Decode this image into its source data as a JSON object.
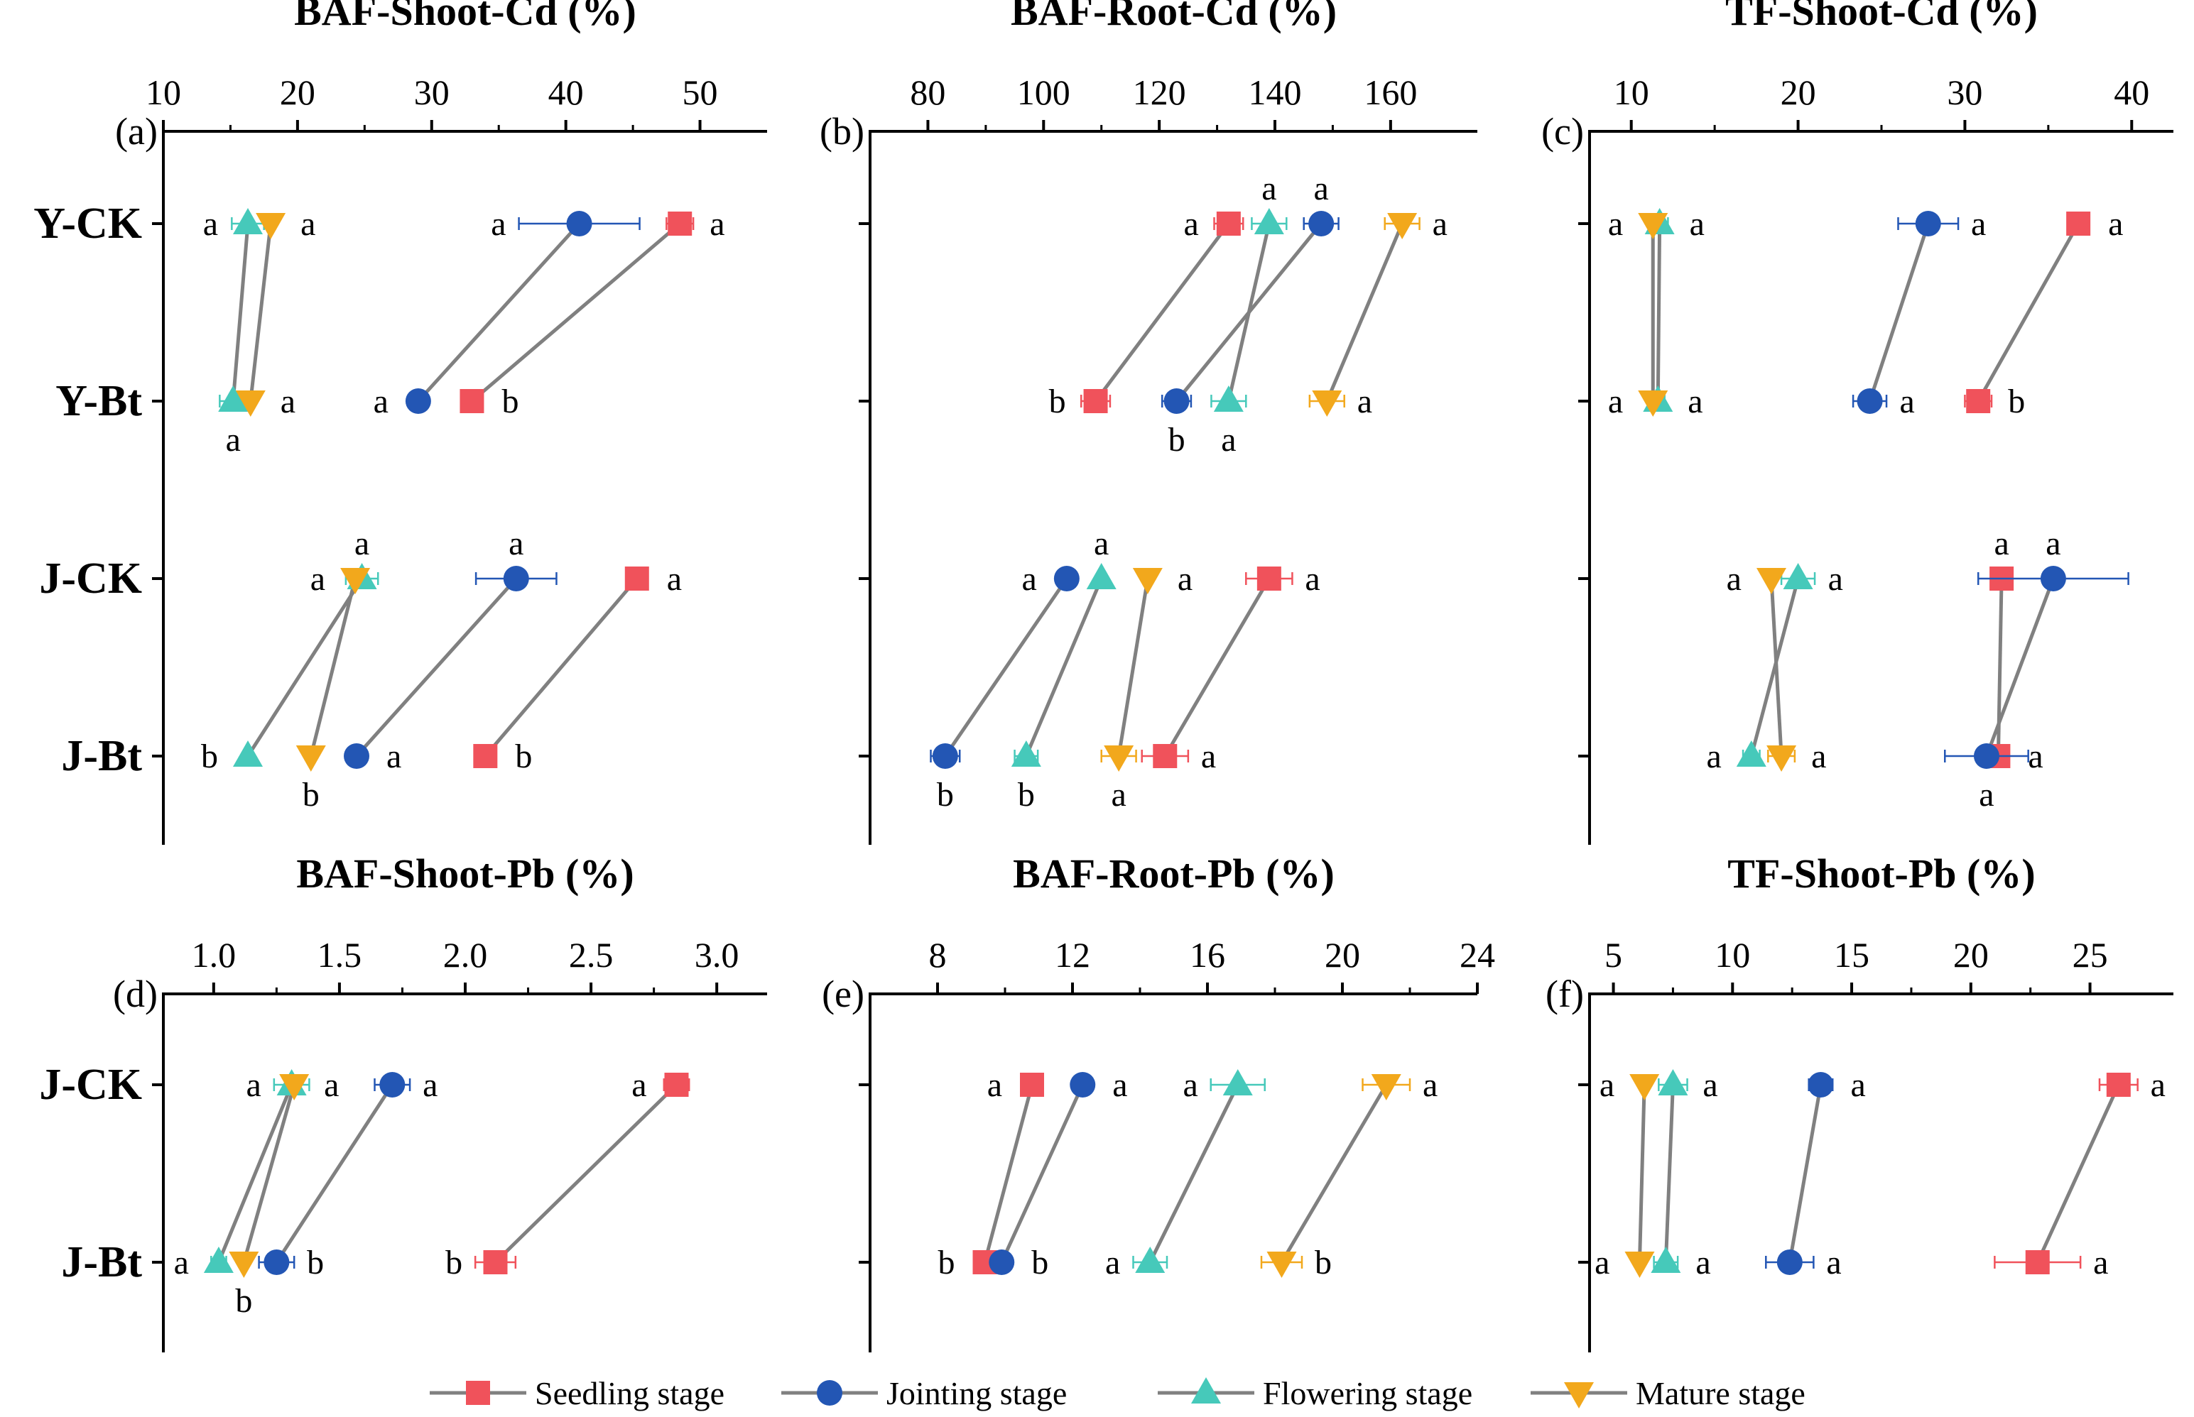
{
  "chart_data": [
    {
      "id": "a",
      "type": "scatter",
      "title": "BAF-Shoot-Cd (%)",
      "panel_label": "(a)",
      "rows": [
        "Y-CK",
        "Y-Bt",
        "J-CK",
        "J-Bt"
      ],
      "xlim": [
        10,
        55
      ],
      "xticks": [
        10,
        20,
        30,
        40,
        50
      ],
      "series": [
        {
          "name": "Seedling stage",
          "values": [
            48.5,
            33.0,
            45.3,
            34.0
          ],
          "errors": [
            1.0,
            0,
            0,
            0
          ],
          "letters": [
            {
              "text": "a",
              "side": "right"
            },
            {
              "text": "b",
              "side": "right"
            },
            {
              "text": "a",
              "side": "right"
            },
            {
              "text": "b",
              "side": "right"
            }
          ]
        },
        {
          "name": "Jointing stage",
          "values": [
            41.0,
            29.0,
            36.3,
            24.4
          ],
          "errors": [
            4.5,
            0,
            3.0,
            0.5
          ],
          "letters": [
            {
              "text": "a",
              "side": "left"
            },
            {
              "text": "a",
              "side": "left"
            },
            {
              "text": "a",
              "side": "above"
            },
            {
              "text": "a",
              "side": "right"
            }
          ]
        },
        {
          "name": "Flowering stage",
          "values": [
            16.3,
            15.2,
            24.8,
            16.3
          ],
          "errors": [
            1.2,
            1.0,
            1.2,
            0
          ],
          "letters": [
            {
              "text": "a",
              "side": "left"
            },
            {
              "text": "a",
              "side": "below"
            },
            {
              "text": "a",
              "side": "above"
            },
            {
              "text": "b",
              "side": "left"
            }
          ]
        },
        {
          "name": "Mature stage",
          "values": [
            18.0,
            16.5,
            24.3,
            21.0
          ],
          "errors": [
            0,
            0,
            0,
            0
          ],
          "letters": [
            {
              "text": "a",
              "side": "right"
            },
            {
              "text": "a",
              "side": "right"
            },
            {
              "text": "a",
              "side": "left"
            },
            {
              "text": "b",
              "side": "below"
            }
          ]
        }
      ]
    },
    {
      "id": "b",
      "type": "scatter",
      "title": "BAF-Root-Cd (%)",
      "panel_label": "(b)",
      "rows": [
        "Y-CK",
        "Y-Bt",
        "J-CK",
        "J-Bt"
      ],
      "xlim": [
        70,
        175
      ],
      "xticks": [
        80,
        100,
        120,
        140,
        160
      ],
      "series": [
        {
          "name": "Seedling stage",
          "values": [
            132,
            109,
            139,
            121
          ],
          "errors": [
            2.5,
            2.5,
            4.0,
            4.0
          ],
          "letters": [
            {
              "text": "a",
              "side": "left"
            },
            {
              "text": "b",
              "side": "left"
            },
            {
              "text": "a",
              "side": "right"
            },
            {
              "text": "a",
              "side": "right"
            }
          ]
        },
        {
          "name": "Jointing stage",
          "values": [
            148,
            123,
            104,
            83
          ],
          "errors": [
            3.0,
            2.5,
            0,
            2.5
          ],
          "letters": [
            {
              "text": "a",
              "side": "above"
            },
            {
              "text": "b",
              "side": "below"
            },
            {
              "text": "a",
              "side": "left"
            },
            {
              "text": "b",
              "side": "below"
            }
          ]
        },
        {
          "name": "Flowering stage",
          "values": [
            139,
            132,
            110,
            97
          ],
          "errors": [
            3.0,
            3.0,
            0,
            2.0
          ],
          "letters": [
            {
              "text": "a",
              "side": "above"
            },
            {
              "text": "a",
              "side": "below"
            },
            {
              "text": "a",
              "side": "above"
            },
            {
              "text": "b",
              "side": "below"
            }
          ]
        },
        {
          "name": "Mature stage",
          "values": [
            162,
            149,
            118,
            113
          ],
          "errors": [
            3.0,
            3.0,
            0,
            3.0
          ],
          "letters": [
            {
              "text": "a",
              "side": "right"
            },
            {
              "text": "a",
              "side": "right"
            },
            {
              "text": "a",
              "side": "right"
            },
            {
              "text": "a",
              "side": "below"
            }
          ]
        }
      ]
    },
    {
      "id": "c",
      "type": "scatter",
      "title": "TF-Shoot-Cd (%)",
      "panel_label": "(c)",
      "rows": [
        "Y-CK",
        "Y-Bt",
        "J-CK",
        "J-Bt"
      ],
      "xlim": [
        7.5,
        42.5
      ],
      "xticks": [
        10,
        20,
        30,
        40
      ],
      "series": [
        {
          "name": "Seedling stage",
          "values": [
            36.8,
            30.8,
            32.2,
            32.0
          ],
          "errors": [
            0,
            0.8,
            0,
            0
          ],
          "letters": [
            {
              "text": "a",
              "side": "right"
            },
            {
              "text": "b",
              "side": "right"
            },
            {
              "text": "a",
              "side": "above"
            },
            {
              "text": "a",
              "side": "right"
            }
          ]
        },
        {
          "name": "Jointing stage",
          "values": [
            27.8,
            24.3,
            35.3,
            31.3
          ],
          "errors": [
            1.8,
            1.0,
            4.5,
            2.5
          ],
          "letters": [
            {
              "text": "a",
              "side": "right"
            },
            {
              "text": "a",
              "side": "right"
            },
            {
              "text": "a",
              "side": "above"
            },
            {
              "text": "a",
              "side": "below"
            }
          ]
        },
        {
          "name": "Flowering stage",
          "values": [
            11.7,
            11.6,
            20.0,
            17.2
          ],
          "errors": [
            0.5,
            0.4,
            1.0,
            0.5
          ],
          "letters": [
            {
              "text": "a",
              "side": "right"
            },
            {
              "text": "a",
              "side": "right"
            },
            {
              "text": "a",
              "side": "right"
            },
            {
              "text": "a",
              "side": "left"
            }
          ]
        },
        {
          "name": "Mature stage",
          "values": [
            11.3,
            11.3,
            18.4,
            19.0
          ],
          "errors": [
            0,
            0,
            0,
            0.8
          ],
          "letters": [
            {
              "text": "a",
              "side": "left"
            },
            {
              "text": "a",
              "side": "left"
            },
            {
              "text": "a",
              "side": "left"
            },
            {
              "text": "a",
              "side": "right"
            }
          ]
        }
      ]
    },
    {
      "id": "d",
      "type": "scatter",
      "title": "BAF-Shoot-Pb (%)",
      "panel_label": "(d)",
      "rows": [
        "J-CK",
        "J-Bt"
      ],
      "xlim": [
        0.8,
        3.2
      ],
      "xticks": [
        1.0,
        1.5,
        2.0,
        2.5,
        3.0
      ],
      "tick_labels": [
        "1.0",
        "1.5",
        "2.0",
        "2.5",
        "3.0"
      ],
      "series": [
        {
          "name": "Seedling stage",
          "values": [
            2.84,
            2.12
          ],
          "errors": [
            0.05,
            0.08
          ],
          "letters": [
            {
              "text": "a",
              "side": "left"
            },
            {
              "text": "b",
              "side": "left"
            }
          ]
        },
        {
          "name": "Jointing stage",
          "values": [
            1.71,
            1.25
          ],
          "errors": [
            0.07,
            0.07
          ],
          "letters": [
            {
              "text": "a",
              "side": "right"
            },
            {
              "text": "b",
              "side": "right"
            }
          ]
        },
        {
          "name": "Flowering stage",
          "values": [
            1.31,
            1.02
          ],
          "errors": [
            0.07,
            0.03
          ],
          "letters": [
            {
              "text": "a",
              "side": "left"
            },
            {
              "text": "a",
              "side": "left"
            }
          ]
        },
        {
          "name": "Mature stage",
          "values": [
            1.32,
            1.12
          ],
          "errors": [
            0,
            0
          ],
          "letters": [
            {
              "text": "a",
              "side": "right"
            },
            {
              "text": "b",
              "side": "below"
            }
          ]
        }
      ]
    },
    {
      "id": "e",
      "type": "scatter",
      "title": "BAF-Root-Pb (%)",
      "panel_label": "(e)",
      "rows": [
        "J-CK",
        "J-Bt"
      ],
      "xlim": [
        6,
        24
      ],
      "xticks": [
        8,
        12,
        16,
        20,
        24
      ],
      "series": [
        {
          "name": "Seedling stage",
          "values": [
            10.8,
            9.4
          ],
          "errors": [
            0,
            0
          ],
          "letters": [
            {
              "text": "a",
              "side": "left"
            },
            {
              "text": "b",
              "side": "left"
            }
          ]
        },
        {
          "name": "Jointing stage",
          "values": [
            12.3,
            9.9
          ],
          "errors": [
            0,
            0
          ],
          "letters": [
            {
              "text": "a",
              "side": "right"
            },
            {
              "text": "b",
              "side": "right"
            }
          ]
        },
        {
          "name": "Flowering stage",
          "values": [
            16.9,
            14.3
          ],
          "errors": [
            0.8,
            0.5
          ],
          "letters": [
            {
              "text": "a",
              "side": "left"
            },
            {
              "text": "a",
              "side": "left"
            }
          ]
        },
        {
          "name": "Mature stage",
          "values": [
            21.3,
            18.2
          ],
          "errors": [
            0.7,
            0.6
          ],
          "letters": [
            {
              "text": "a",
              "side": "right"
            },
            {
              "text": "b",
              "side": "right"
            }
          ]
        }
      ]
    },
    {
      "id": "f",
      "type": "scatter",
      "title": "TF-Shoot-Pb (%)",
      "panel_label": "(f)",
      "rows": [
        "J-CK",
        "J-Bt"
      ],
      "xlim": [
        4,
        28.5
      ],
      "xticks": [
        5,
        10,
        15,
        20,
        25
      ],
      "series": [
        {
          "name": "Seedling stage",
          "values": [
            26.2,
            22.8
          ],
          "errors": [
            0.8,
            1.8
          ],
          "letters": [
            {
              "text": "a",
              "side": "right"
            },
            {
              "text": "a",
              "side": "right"
            }
          ]
        },
        {
          "name": "Jointing stage",
          "values": [
            13.7,
            12.4
          ],
          "errors": [
            0.5,
            1.0
          ],
          "letters": [
            {
              "text": "a",
              "side": "right"
            },
            {
              "text": "a",
              "side": "right"
            }
          ]
        },
        {
          "name": "Flowering stage",
          "values": [
            7.5,
            7.2
          ],
          "errors": [
            0.6,
            0.5
          ],
          "letters": [
            {
              "text": "a",
              "side": "right"
            },
            {
              "text": "a",
              "side": "right"
            }
          ]
        },
        {
          "name": "Mature stage",
          "values": [
            6.3,
            6.1
          ],
          "errors": [
            0,
            0
          ],
          "letters": [
            {
              "text": "a",
              "side": "left"
            },
            {
              "text": "a",
              "side": "left"
            }
          ]
        }
      ]
    }
  ],
  "legend": {
    "placement": "bottom",
    "items": [
      {
        "label": "Seedling stage",
        "marker": "square",
        "color": "#F0525B"
      },
      {
        "label": "Jointing stage",
        "marker": "circle",
        "color": "#2356B4"
      },
      {
        "label": "Flowering stage",
        "marker": "triangle-up",
        "color": "#46C9BA"
      },
      {
        "label": "Mature stage",
        "marker": "triangle-down",
        "color": "#F2A81C"
      }
    ]
  },
  "colors": {
    "seedling": "#F0525B",
    "jointing": "#2356B4",
    "flowering": "#46C9BA",
    "mature": "#F2A81C",
    "connector": "#808080",
    "axis": "#000000"
  }
}
